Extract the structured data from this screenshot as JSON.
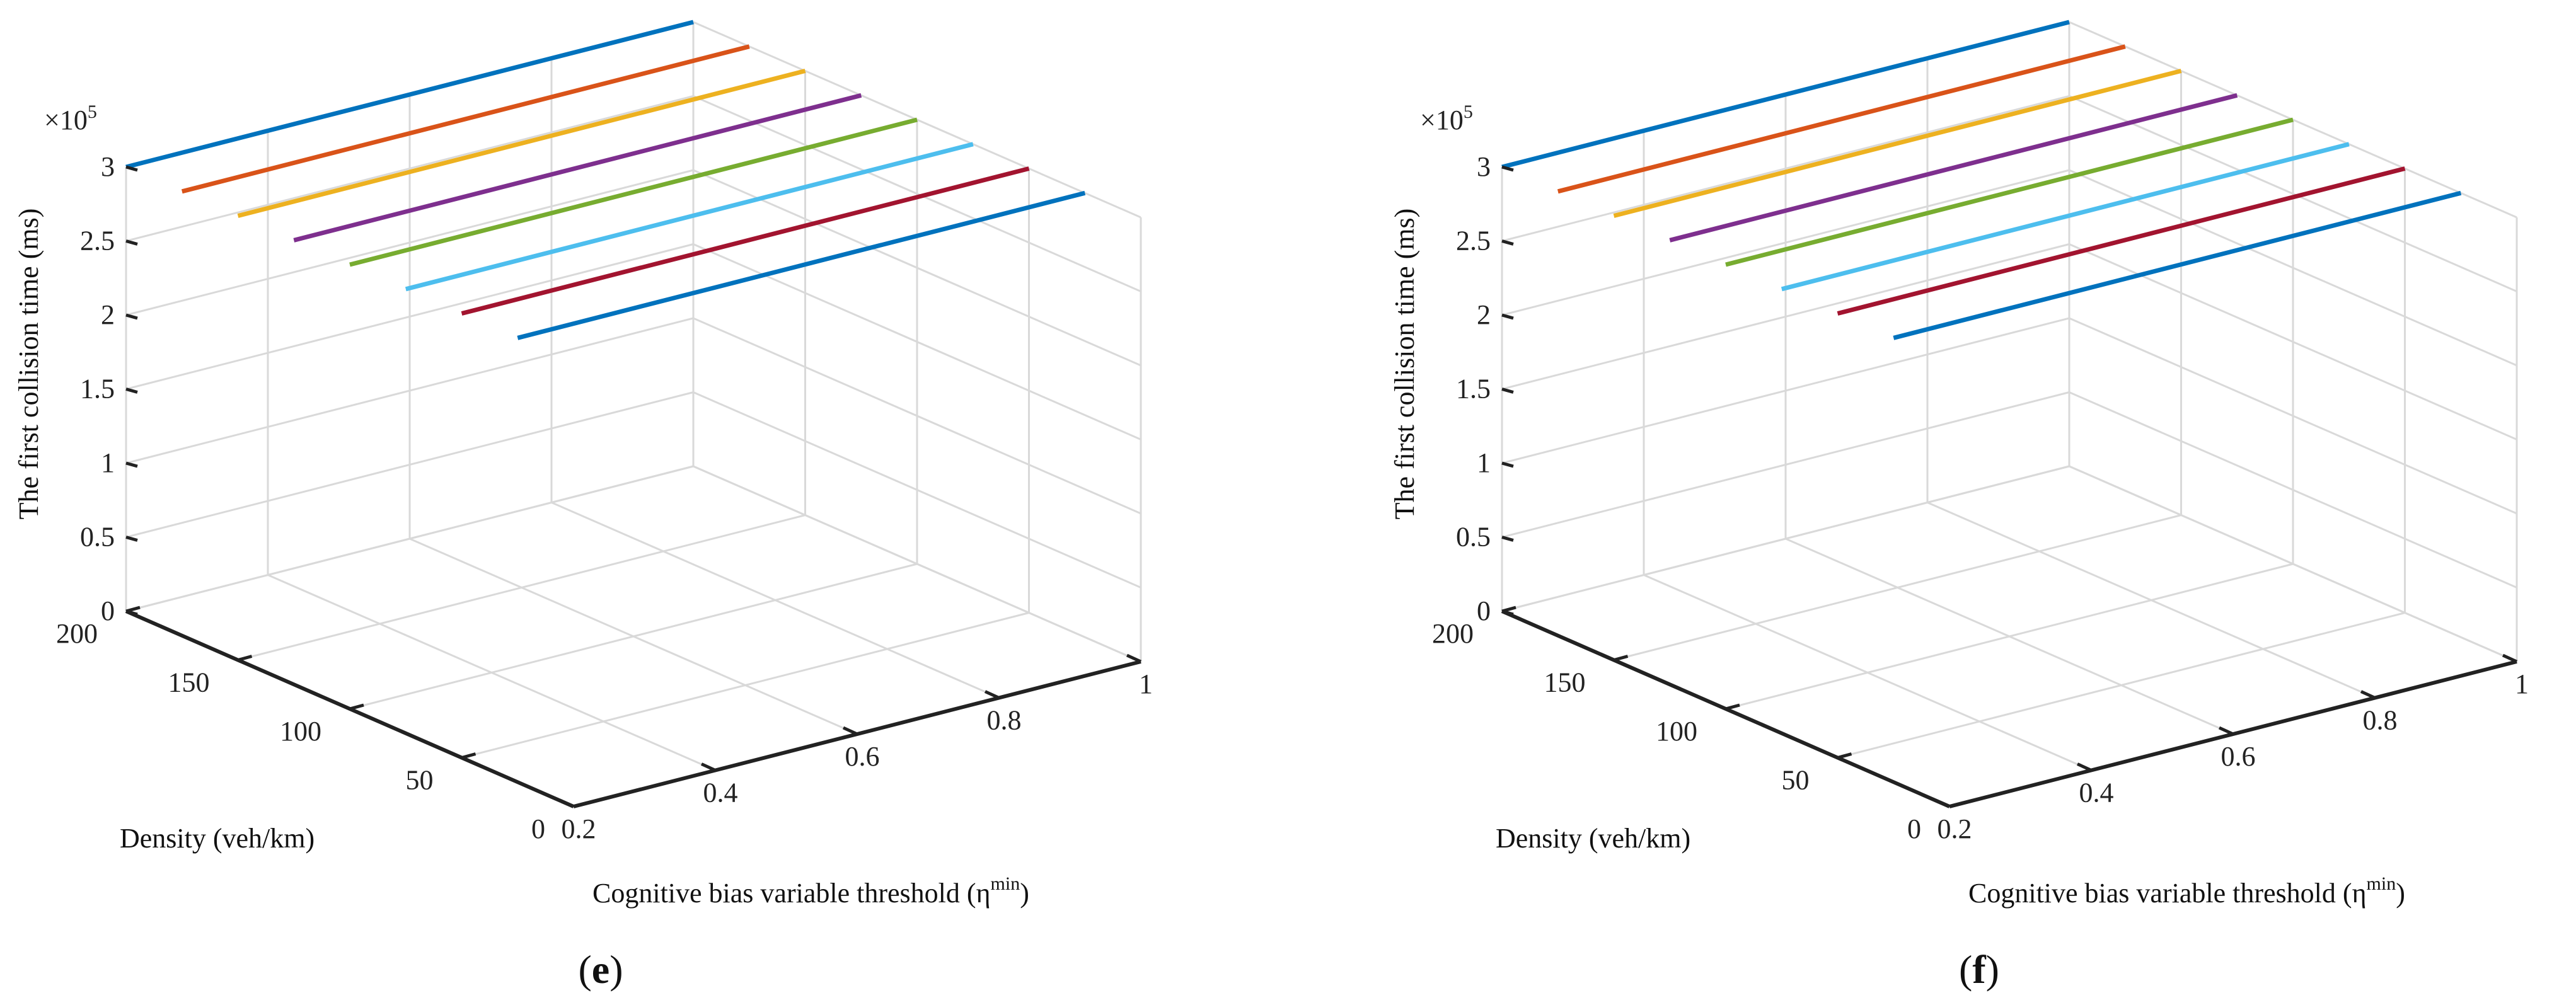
{
  "chart_data": [
    {
      "type": "line3d",
      "panel_label": "e",
      "zlabel": "The first collision time (ms)",
      "xlabel": "Cognitive bias variable threshold (η",
      "xlabel_sup": "min",
      "xlabel_end": ")",
      "ylabel": "Density (veh/km)",
      "zexponent": "×10",
      "zexponent_sup": "5",
      "xlim": [
        0.2,
        1
      ],
      "ylim": [
        0,
        200
      ],
      "zlim": [
        0,
        3
      ],
      "xticks": [
        "0.2",
        "0.4",
        "0.6",
        "0.8",
        "1"
      ],
      "yticks": [
        "0",
        "50",
        "100",
        "150",
        "200"
      ],
      "zticks": [
        "0",
        "0.5",
        "1",
        "1.5",
        "2",
        "2.5",
        "3"
      ],
      "series": [
        {
          "density": 200,
          "x": [
            0.2,
            1
          ],
          "z": [
            3,
            3
          ],
          "color": "#0072BD"
        },
        {
          "density": 175,
          "x": [
            0.2,
            1
          ],
          "z": [
            3,
            3
          ],
          "color": "#D95319"
        },
        {
          "density": 150,
          "x": [
            0.2,
            1
          ],
          "z": [
            3,
            3
          ],
          "color": "#EDB120"
        },
        {
          "density": 125,
          "x": [
            0.2,
            1
          ],
          "z": [
            3,
            3
          ],
          "color": "#7E2F8E"
        },
        {
          "density": 100,
          "x": [
            0.2,
            1
          ],
          "z": [
            3,
            3
          ],
          "color": "#77AC30"
        },
        {
          "density": 75,
          "x": [
            0.2,
            1
          ],
          "z": [
            3,
            3
          ],
          "color": "#4DBEEE"
        },
        {
          "density": 50,
          "x": [
            0.2,
            1
          ],
          "z": [
            3,
            3
          ],
          "color": "#A2142F"
        },
        {
          "density": 25,
          "x": [
            0.2,
            1
          ],
          "z": [
            3,
            3
          ],
          "color": "#0072BD"
        }
      ]
    },
    {
      "type": "line3d",
      "panel_label": "f",
      "zlabel": "The first collision time (ms)",
      "xlabel": "Cognitive bias variable threshold (η",
      "xlabel_sup": "min",
      "xlabel_end": ")",
      "ylabel": "Density (veh/km)",
      "zexponent": "×10",
      "zexponent_sup": "5",
      "xlim": [
        0.2,
        1
      ],
      "ylim": [
        0,
        200
      ],
      "zlim": [
        0,
        3
      ],
      "xticks": [
        "0.2",
        "0.4",
        "0.6",
        "0.8",
        "1"
      ],
      "yticks": [
        "0",
        "50",
        "100",
        "150",
        "200"
      ],
      "zticks": [
        "0",
        "0.5",
        "1",
        "1.5",
        "2",
        "2.5",
        "3"
      ],
      "series": [
        {
          "density": 200,
          "x": [
            0.2,
            1
          ],
          "z": [
            3,
            3
          ],
          "color": "#0072BD"
        },
        {
          "density": 175,
          "x": [
            0.2,
            1
          ],
          "z": [
            3,
            3
          ],
          "color": "#D95319"
        },
        {
          "density": 150,
          "x": [
            0.2,
            1
          ],
          "z": [
            3,
            3
          ],
          "color": "#EDB120"
        },
        {
          "density": 125,
          "x": [
            0.2,
            1
          ],
          "z": [
            3,
            3
          ],
          "color": "#7E2F8E"
        },
        {
          "density": 100,
          "x": [
            0.2,
            1
          ],
          "z": [
            3,
            3
          ],
          "color": "#77AC30"
        },
        {
          "density": 75,
          "x": [
            0.2,
            1
          ],
          "z": [
            3,
            3
          ],
          "color": "#4DBEEE"
        },
        {
          "density": 50,
          "x": [
            0.2,
            1
          ],
          "z": [
            3,
            3
          ],
          "color": "#A2142F"
        },
        {
          "density": 25,
          "x": [
            0.2,
            1
          ],
          "z": [
            3,
            3
          ],
          "color": "#0072BD"
        }
      ]
    }
  ]
}
